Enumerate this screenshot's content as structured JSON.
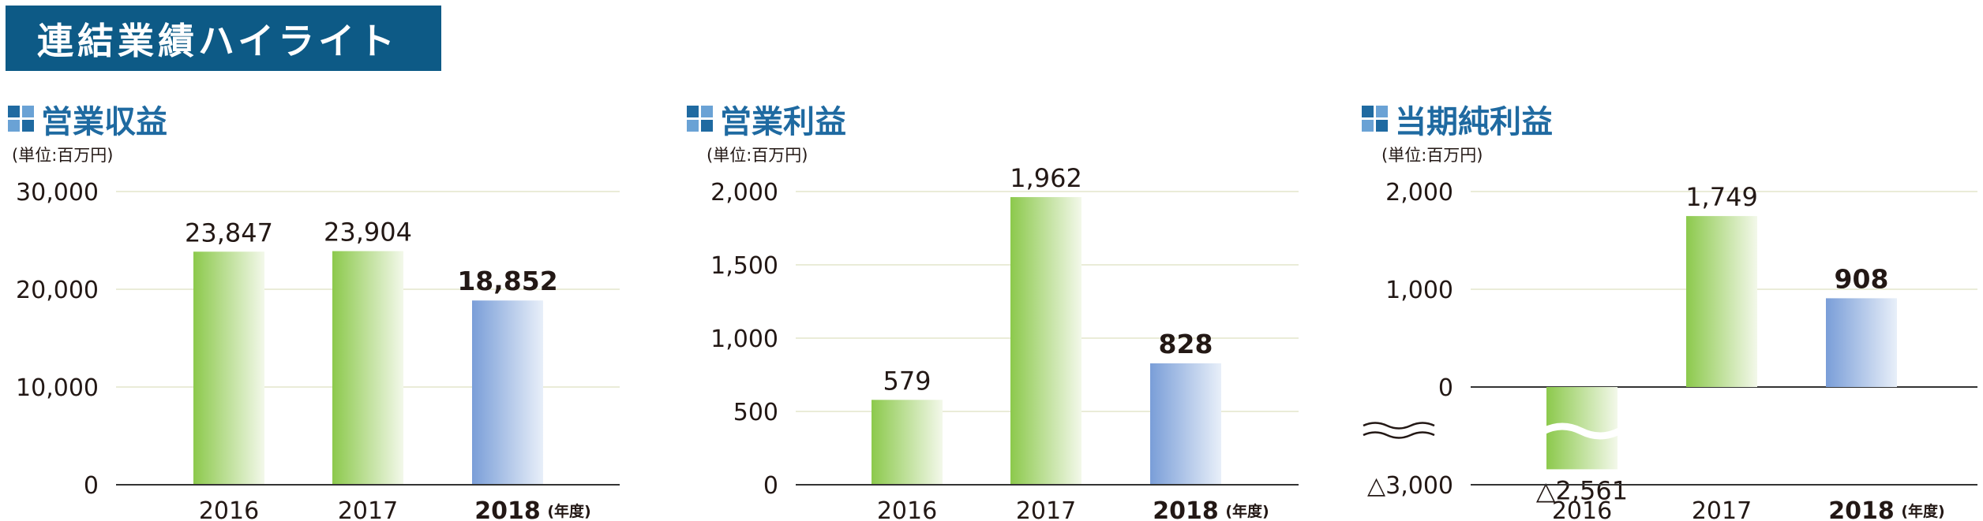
{
  "page": {
    "banner_title": "連結業績ハイライト",
    "colors": {
      "banner": "#0d5a86",
      "accent_dark": "#1f6aa1",
      "accent_light": "#6aa2d5",
      "past_bar": "#8cc94c",
      "current_bar": "#7a9ed8"
    }
  },
  "chart_data": [
    {
      "type": "bar",
      "title": "営業収益",
      "unit": "(単位:百万円)",
      "categories": [
        "2016",
        "2017",
        "2018"
      ],
      "category_suffix": "(年度)",
      "values": [
        23847,
        23904,
        18852
      ],
      "value_labels": [
        "23,847",
        "23,904",
        "18,852"
      ],
      "yticks": [
        "30,000",
        "20,000",
        "10,000",
        "0"
      ],
      "ylim": [
        0,
        30000
      ],
      "grid": true,
      "highlight_last": true
    },
    {
      "type": "bar",
      "title": "営業利益",
      "unit": "(単位:百万円)",
      "categories": [
        "2016",
        "2017",
        "2018"
      ],
      "category_suffix": "(年度)",
      "values": [
        579,
        1962,
        828
      ],
      "value_labels": [
        "579",
        "1,962",
        "828"
      ],
      "yticks": [
        "2,000",
        "1,500",
        "1,000",
        "500",
        "0"
      ],
      "ylim": [
        0,
        2000
      ],
      "grid": true,
      "highlight_last": true
    },
    {
      "type": "bar",
      "title": "当期純利益",
      "unit": "(単位:百万円)",
      "categories": [
        "2016",
        "2017",
        "2018"
      ],
      "category_suffix": "(年度)",
      "values": [
        -2561,
        1749,
        908
      ],
      "value_labels": [
        "△2,561",
        "1,749",
        "908"
      ],
      "yticks": [
        "2,000",
        "1,000",
        "0",
        "△3,000"
      ],
      "ylim": [
        -3000,
        2000
      ],
      "axis_break": true,
      "grid": true,
      "highlight_last": true
    }
  ]
}
